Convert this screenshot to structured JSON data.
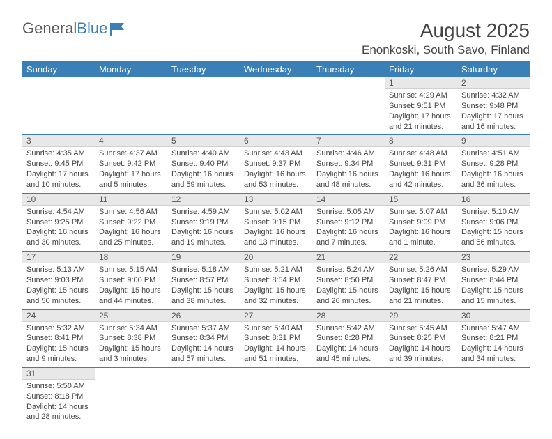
{
  "logo": {
    "text_g": "General",
    "text_b": "Blue"
  },
  "title": "August 2025",
  "location": "Enonkoski, South Savo, Finland",
  "colors": {
    "header_bg": "#3a7fb5",
    "header_text": "#ffffff",
    "daynum_bg": "#e8e8e8",
    "border": "#3a7fb5"
  },
  "dayheaders": [
    "Sunday",
    "Monday",
    "Tuesday",
    "Wednesday",
    "Thursday",
    "Friday",
    "Saturday"
  ],
  "weeks": [
    [
      null,
      null,
      null,
      null,
      null,
      {
        "n": "1",
        "sr": "Sunrise: 4:29 AM",
        "ss": "Sunset: 9:51 PM",
        "dl1": "Daylight: 17 hours",
        "dl2": "and 21 minutes."
      },
      {
        "n": "2",
        "sr": "Sunrise: 4:32 AM",
        "ss": "Sunset: 9:48 PM",
        "dl1": "Daylight: 17 hours",
        "dl2": "and 16 minutes."
      }
    ],
    [
      {
        "n": "3",
        "sr": "Sunrise: 4:35 AM",
        "ss": "Sunset: 9:45 PM",
        "dl1": "Daylight: 17 hours",
        "dl2": "and 10 minutes."
      },
      {
        "n": "4",
        "sr": "Sunrise: 4:37 AM",
        "ss": "Sunset: 9:42 PM",
        "dl1": "Daylight: 17 hours",
        "dl2": "and 5 minutes."
      },
      {
        "n": "5",
        "sr": "Sunrise: 4:40 AM",
        "ss": "Sunset: 9:40 PM",
        "dl1": "Daylight: 16 hours",
        "dl2": "and 59 minutes."
      },
      {
        "n": "6",
        "sr": "Sunrise: 4:43 AM",
        "ss": "Sunset: 9:37 PM",
        "dl1": "Daylight: 16 hours",
        "dl2": "and 53 minutes."
      },
      {
        "n": "7",
        "sr": "Sunrise: 4:46 AM",
        "ss": "Sunset: 9:34 PM",
        "dl1": "Daylight: 16 hours",
        "dl2": "and 48 minutes."
      },
      {
        "n": "8",
        "sr": "Sunrise: 4:48 AM",
        "ss": "Sunset: 9:31 PM",
        "dl1": "Daylight: 16 hours",
        "dl2": "and 42 minutes."
      },
      {
        "n": "9",
        "sr": "Sunrise: 4:51 AM",
        "ss": "Sunset: 9:28 PM",
        "dl1": "Daylight: 16 hours",
        "dl2": "and 36 minutes."
      }
    ],
    [
      {
        "n": "10",
        "sr": "Sunrise: 4:54 AM",
        "ss": "Sunset: 9:25 PM",
        "dl1": "Daylight: 16 hours",
        "dl2": "and 30 minutes."
      },
      {
        "n": "11",
        "sr": "Sunrise: 4:56 AM",
        "ss": "Sunset: 9:22 PM",
        "dl1": "Daylight: 16 hours",
        "dl2": "and 25 minutes."
      },
      {
        "n": "12",
        "sr": "Sunrise: 4:59 AM",
        "ss": "Sunset: 9:19 PM",
        "dl1": "Daylight: 16 hours",
        "dl2": "and 19 minutes."
      },
      {
        "n": "13",
        "sr": "Sunrise: 5:02 AM",
        "ss": "Sunset: 9:15 PM",
        "dl1": "Daylight: 16 hours",
        "dl2": "and 13 minutes."
      },
      {
        "n": "14",
        "sr": "Sunrise: 5:05 AM",
        "ss": "Sunset: 9:12 PM",
        "dl1": "Daylight: 16 hours",
        "dl2": "and 7 minutes."
      },
      {
        "n": "15",
        "sr": "Sunrise: 5:07 AM",
        "ss": "Sunset: 9:09 PM",
        "dl1": "Daylight: 16 hours",
        "dl2": "and 1 minute."
      },
      {
        "n": "16",
        "sr": "Sunrise: 5:10 AM",
        "ss": "Sunset: 9:06 PM",
        "dl1": "Daylight: 15 hours",
        "dl2": "and 56 minutes."
      }
    ],
    [
      {
        "n": "17",
        "sr": "Sunrise: 5:13 AM",
        "ss": "Sunset: 9:03 PM",
        "dl1": "Daylight: 15 hours",
        "dl2": "and 50 minutes."
      },
      {
        "n": "18",
        "sr": "Sunrise: 5:15 AM",
        "ss": "Sunset: 9:00 PM",
        "dl1": "Daylight: 15 hours",
        "dl2": "and 44 minutes."
      },
      {
        "n": "19",
        "sr": "Sunrise: 5:18 AM",
        "ss": "Sunset: 8:57 PM",
        "dl1": "Daylight: 15 hours",
        "dl2": "and 38 minutes."
      },
      {
        "n": "20",
        "sr": "Sunrise: 5:21 AM",
        "ss": "Sunset: 8:54 PM",
        "dl1": "Daylight: 15 hours",
        "dl2": "and 32 minutes."
      },
      {
        "n": "21",
        "sr": "Sunrise: 5:24 AM",
        "ss": "Sunset: 8:50 PM",
        "dl1": "Daylight: 15 hours",
        "dl2": "and 26 minutes."
      },
      {
        "n": "22",
        "sr": "Sunrise: 5:26 AM",
        "ss": "Sunset: 8:47 PM",
        "dl1": "Daylight: 15 hours",
        "dl2": "and 21 minutes."
      },
      {
        "n": "23",
        "sr": "Sunrise: 5:29 AM",
        "ss": "Sunset: 8:44 PM",
        "dl1": "Daylight: 15 hours",
        "dl2": "and 15 minutes."
      }
    ],
    [
      {
        "n": "24",
        "sr": "Sunrise: 5:32 AM",
        "ss": "Sunset: 8:41 PM",
        "dl1": "Daylight: 15 hours",
        "dl2": "and 9 minutes."
      },
      {
        "n": "25",
        "sr": "Sunrise: 5:34 AM",
        "ss": "Sunset: 8:38 PM",
        "dl1": "Daylight: 15 hours",
        "dl2": "and 3 minutes."
      },
      {
        "n": "26",
        "sr": "Sunrise: 5:37 AM",
        "ss": "Sunset: 8:34 PM",
        "dl1": "Daylight: 14 hours",
        "dl2": "and 57 minutes."
      },
      {
        "n": "27",
        "sr": "Sunrise: 5:40 AM",
        "ss": "Sunset: 8:31 PM",
        "dl1": "Daylight: 14 hours",
        "dl2": "and 51 minutes."
      },
      {
        "n": "28",
        "sr": "Sunrise: 5:42 AM",
        "ss": "Sunset: 8:28 PM",
        "dl1": "Daylight: 14 hours",
        "dl2": "and 45 minutes."
      },
      {
        "n": "29",
        "sr": "Sunrise: 5:45 AM",
        "ss": "Sunset: 8:25 PM",
        "dl1": "Daylight: 14 hours",
        "dl2": "and 39 minutes."
      },
      {
        "n": "30",
        "sr": "Sunrise: 5:47 AM",
        "ss": "Sunset: 8:21 PM",
        "dl1": "Daylight: 14 hours",
        "dl2": "and 34 minutes."
      }
    ],
    [
      {
        "n": "31",
        "sr": "Sunrise: 5:50 AM",
        "ss": "Sunset: 8:18 PM",
        "dl1": "Daylight: 14 hours",
        "dl2": "and 28 minutes."
      },
      null,
      null,
      null,
      null,
      null,
      null
    ]
  ]
}
